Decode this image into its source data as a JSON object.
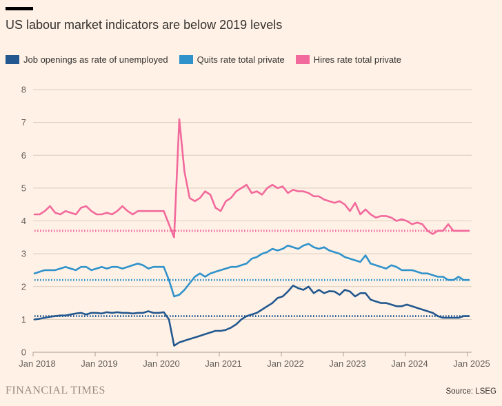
{
  "header": {
    "title": "US labour market indicators are below 2019 levels"
  },
  "legend": [
    {
      "label": "Job openings as rate of unemployed",
      "color": "#22588F"
    },
    {
      "label": "Quits rate total private",
      "color": "#3092CB"
    },
    {
      "label": "Hires rate total private",
      "color": "#F2699C"
    }
  ],
  "footer": {
    "brand": "FINANCIAL TIMES",
    "source": "Source: LSEG"
  },
  "colors": {
    "background": "#FFF1E5",
    "gridline": "#D7CCBE",
    "baseline": "#A89E92",
    "tick_text": "#66605B",
    "title_text": "#33302E"
  },
  "chart_data": {
    "type": "line",
    "title": "US labour market indicators are below 2019 levels",
    "xlabel": "",
    "ylabel": "",
    "ylim": [
      0,
      8
    ],
    "yticks": [
      0,
      1,
      2,
      3,
      4,
      5,
      6,
      7,
      8
    ],
    "x_start": "Jan 2018",
    "x_end": "Jan 2025",
    "x_interval": "month",
    "x_tick_labels": [
      "Jan 2018",
      "Jan 2019",
      "Jan 2020",
      "Jan 2021",
      "Jan 2022",
      "Jan 2023",
      "Jan 2024",
      "Jan 2025"
    ],
    "grid": "horizontal",
    "legend_position": "top",
    "note": "Dotted horizontal lines mark 2019 levels for each series",
    "series": [
      {
        "id": "job-openings",
        "name": "Job openings as rate of unemployed",
        "color": "#22588F",
        "reference_2019_level": 1.1,
        "values": [
          1.0,
          1.02,
          1.05,
          1.08,
          1.1,
          1.12,
          1.12,
          1.15,
          1.18,
          1.2,
          1.15,
          1.2,
          1.2,
          1.18,
          1.22,
          1.2,
          1.22,
          1.2,
          1.2,
          1.18,
          1.2,
          1.2,
          1.25,
          1.2,
          1.2,
          1.22,
          1.0,
          0.2,
          0.3,
          0.35,
          0.4,
          0.45,
          0.5,
          0.55,
          0.6,
          0.65,
          0.65,
          0.68,
          0.75,
          0.85,
          1.0,
          1.1,
          1.15,
          1.2,
          1.3,
          1.4,
          1.5,
          1.65,
          1.7,
          1.85,
          2.03,
          1.95,
          1.9,
          2.0,
          1.8,
          1.9,
          1.8,
          1.86,
          1.85,
          1.75,
          1.9,
          1.85,
          1.7,
          1.8,
          1.8,
          1.6,
          1.55,
          1.5,
          1.5,
          1.45,
          1.4,
          1.4,
          1.45,
          1.4,
          1.35,
          1.3,
          1.25,
          1.2,
          1.1,
          1.05,
          1.05,
          1.05,
          1.05,
          1.1,
          1.1
        ]
      },
      {
        "id": "quits-rate",
        "name": "Quits rate total private",
        "color": "#3092CB",
        "reference_2019_level": 2.2,
        "values": [
          2.4,
          2.45,
          2.5,
          2.5,
          2.5,
          2.55,
          2.6,
          2.55,
          2.5,
          2.6,
          2.6,
          2.5,
          2.55,
          2.6,
          2.55,
          2.6,
          2.6,
          2.55,
          2.6,
          2.65,
          2.7,
          2.65,
          2.55,
          2.6,
          2.6,
          2.6,
          2.2,
          1.7,
          1.75,
          1.9,
          2.1,
          2.3,
          2.4,
          2.3,
          2.4,
          2.45,
          2.5,
          2.55,
          2.6,
          2.6,
          2.65,
          2.7,
          2.85,
          2.9,
          3.0,
          3.05,
          3.15,
          3.1,
          3.15,
          3.25,
          3.2,
          3.15,
          3.25,
          3.3,
          3.2,
          3.15,
          3.2,
          3.1,
          3.05,
          3.0,
          2.9,
          2.85,
          2.8,
          2.75,
          2.95,
          2.7,
          2.65,
          2.6,
          2.55,
          2.65,
          2.6,
          2.5,
          2.5,
          2.5,
          2.45,
          2.4,
          2.4,
          2.35,
          2.3,
          2.3,
          2.2,
          2.2,
          2.3,
          2.2,
          2.2
        ]
      },
      {
        "id": "hires-rate",
        "name": "Hires rate total private",
        "color": "#F2699C",
        "reference_2019_level": 3.7,
        "values": [
          4.2,
          4.2,
          4.3,
          4.45,
          4.25,
          4.2,
          4.3,
          4.25,
          4.2,
          4.4,
          4.45,
          4.3,
          4.2,
          4.2,
          4.25,
          4.2,
          4.3,
          4.45,
          4.3,
          4.2,
          4.3,
          4.3,
          4.3,
          4.3,
          4.3,
          4.3,
          3.9,
          3.5,
          7.1,
          5.5,
          4.7,
          4.6,
          4.7,
          4.9,
          4.8,
          4.4,
          4.3,
          4.6,
          4.7,
          4.9,
          5.0,
          5.1,
          4.85,
          4.9,
          4.8,
          5.0,
          5.1,
          5.0,
          5.05,
          4.85,
          4.95,
          4.9,
          4.9,
          4.85,
          4.75,
          4.75,
          4.65,
          4.6,
          4.55,
          4.6,
          4.5,
          4.3,
          4.55,
          4.2,
          4.35,
          4.2,
          4.1,
          4.15,
          4.15,
          4.1,
          4.0,
          4.05,
          4.0,
          3.9,
          3.95,
          3.9,
          3.7,
          3.6,
          3.7,
          3.7,
          3.9,
          3.7,
          3.7,
          3.7,
          3.7
        ]
      }
    ]
  }
}
